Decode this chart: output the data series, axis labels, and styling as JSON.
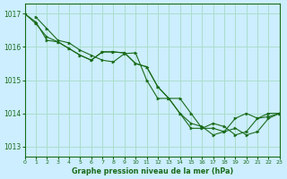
{
  "title": "Graphe pression niveau de la mer (hPa)",
  "bg_color": "#cceeff",
  "grid_color": "#aaddcc",
  "line_color": "#1a6b1a",
  "xlim": [
    0,
    23
  ],
  "ylim": [
    1012.7,
    1017.3
  ],
  "yticks": [
    1013,
    1014,
    1015,
    1016,
    1017
  ],
  "xticks": [
    0,
    1,
    2,
    3,
    4,
    5,
    6,
    7,
    8,
    9,
    10,
    11,
    12,
    13,
    14,
    15,
    16,
    17,
    18,
    19,
    20,
    21,
    22,
    23
  ],
  "series_x": [
    [
      0,
      1,
      2,
      3,
      4,
      5,
      6,
      7,
      8,
      9,
      10,
      11,
      12,
      13,
      14,
      15,
      16,
      17,
      18,
      19,
      20,
      21,
      22,
      23
    ],
    [
      1,
      2,
      3,
      4,
      5,
      6,
      7,
      8,
      9,
      10,
      11,
      12,
      13,
      14,
      15,
      16,
      17,
      18,
      19,
      20,
      21,
      22,
      23
    ],
    [
      0,
      1,
      2,
      3,
      4,
      5,
      6,
      7,
      8,
      9,
      10,
      11,
      12,
      13,
      14,
      15,
      16,
      17,
      18,
      19,
      20,
      21,
      22,
      23
    ]
  ],
  "series_y": [
    [
      1017.0,
      1016.7,
      1016.3,
      1016.15,
      1015.95,
      1015.75,
      1015.6,
      1015.85,
      1015.85,
      1015.82,
      1015.5,
      1015.4,
      1014.8,
      1014.45,
      1014.0,
      1013.55,
      1013.55,
      1013.7,
      1013.6,
      1013.35,
      1013.45,
      1013.85,
      1014.0,
      1014.0
    ],
    [
      1016.9,
      1016.55,
      1016.2,
      1016.12,
      1015.9,
      1015.75,
      1015.6,
      1015.55,
      1015.8,
      1015.82,
      1015.0,
      1014.45,
      1014.45,
      1014.45,
      1014.0,
      1013.55,
      1013.55,
      1013.45,
      1013.55,
      1013.35,
      1013.45,
      1013.85,
      1014.0
    ],
    [
      1017.0,
      1016.75,
      1016.2,
      1016.15,
      1015.95,
      1015.75,
      1015.6,
      1015.85,
      1015.85,
      1015.82,
      1015.5,
      1015.4,
      1014.8,
      1014.45,
      1014.0,
      1013.7,
      1013.6,
      1013.35,
      1013.45,
      1013.85,
      1014.0,
      1013.85,
      1013.9,
      1014.0
    ]
  ]
}
